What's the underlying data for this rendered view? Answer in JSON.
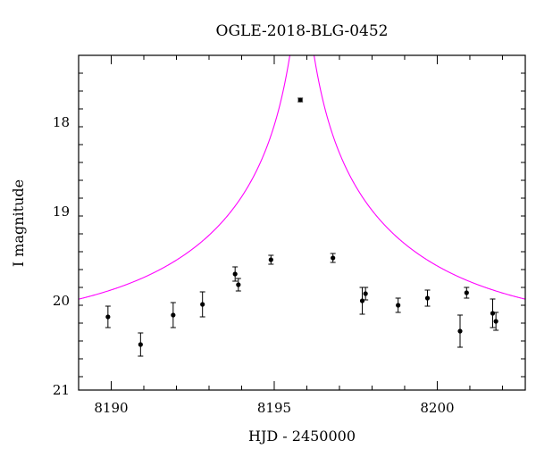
{
  "chart_data": {
    "type": "scatter",
    "title": "OGLE-2018-BLG-0452",
    "xlabel": "HJD - 2450000",
    "ylabel": "I magnitude",
    "xlim": [
      8189,
      8202.7
    ],
    "ylim": [
      21,
      17.25
    ],
    "y_inverted": true,
    "grid": false,
    "x_major_ticks": [
      8190,
      8195,
      8200
    ],
    "y_major_ticks": [
      18,
      19,
      20,
      21
    ],
    "x_minor_step": 1,
    "y_minor_step": 0.2,
    "colors": {
      "points": "#000000",
      "model": "#ff00ff",
      "frame": "#000000"
    },
    "series": [
      {
        "kind": "points_with_errorbars",
        "points": [
          {
            "x": 8189.9,
            "y": 20.18,
            "err": 0.12
          },
          {
            "x": 8190.9,
            "y": 20.49,
            "err": 0.13
          },
          {
            "x": 8191.9,
            "y": 20.16,
            "err": 0.14
          },
          {
            "x": 8192.8,
            "y": 20.04,
            "err": 0.14
          },
          {
            "x": 8193.8,
            "y": 19.7,
            "err": 0.08
          },
          {
            "x": 8193.9,
            "y": 19.82,
            "err": 0.07
          },
          {
            "x": 8194.9,
            "y": 19.54,
            "err": 0.05
          },
          {
            "x": 8195.8,
            "y": 17.75,
            "err": 0.02
          },
          {
            "x": 8196.8,
            "y": 19.52,
            "err": 0.05
          },
          {
            "x": 8197.7,
            "y": 20.0,
            "err": 0.15
          },
          {
            "x": 8197.8,
            "y": 19.92,
            "err": 0.07
          },
          {
            "x": 8198.8,
            "y": 20.05,
            "err": 0.08
          },
          {
            "x": 8199.7,
            "y": 19.97,
            "err": 0.09
          },
          {
            "x": 8200.7,
            "y": 20.34,
            "err": 0.18
          },
          {
            "x": 8200.9,
            "y": 19.91,
            "err": 0.06
          },
          {
            "x": 8201.7,
            "y": 20.14,
            "err": 0.16
          },
          {
            "x": 8201.8,
            "y": 20.23,
            "err": 0.1
          }
        ]
      },
      {
        "kind": "model_curve",
        "model": {
          "type": "pspl",
          "t0": 8195.85,
          "tE": 7.2,
          "u0": 0.028,
          "baseline": 20.33
        }
      }
    ]
  }
}
